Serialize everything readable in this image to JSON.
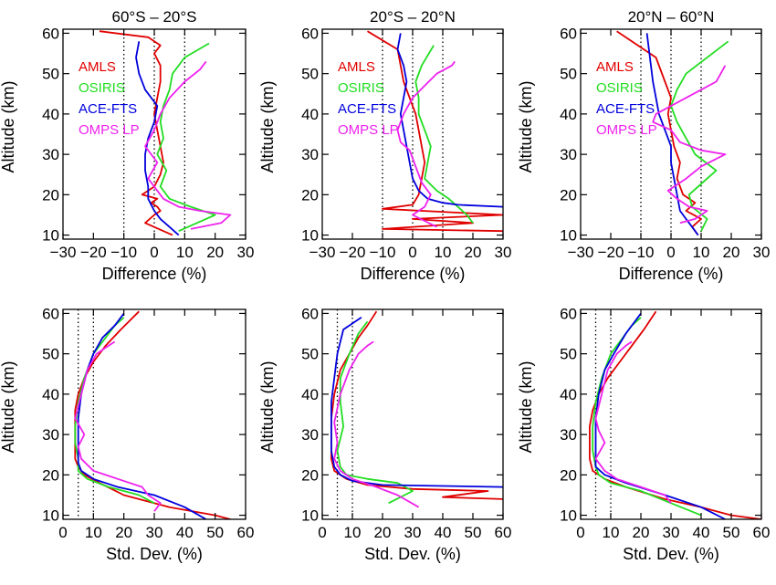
{
  "figure": {
    "diff_xlabel": "Difference (%)",
    "std_xlabel": "Std. Dev. (%)",
    "ylabel": "Altitude (km)"
  },
  "legend": [
    {
      "label": "AMLS",
      "color": "#e00000"
    },
    {
      "label": "OSIRIS",
      "color": "#22dd22"
    },
    {
      "label": "ACE-FTS",
      "color": "#0000dd"
    },
    {
      "label": "OMPS LP",
      "color": "#ee22ee"
    }
  ],
  "colors": {
    "AMLS": "#e00000",
    "OSIRIS": "#22dd22",
    "ACE-FTS": "#0000dd",
    "OMPS LP": "#ee22ee",
    "axis": "#000000"
  },
  "chart_data": [
    {
      "type": "line",
      "panel": "diff-60S-20S",
      "title": "60°S – 20°S",
      "xlabel": "Difference (%)",
      "ylabel": "Altitude (km)",
      "xlim": [
        -30,
        30
      ],
      "ylim": [
        9,
        61
      ],
      "xticks": [
        -30,
        -20,
        -10,
        0,
        10,
        20,
        30
      ],
      "yticks": [
        10,
        20,
        30,
        40,
        50,
        60
      ],
      "ref_lines": [
        -10,
        0,
        10
      ],
      "series": [
        {
          "name": "AMLS",
          "x": [
            6,
            3,
            -3,
            0,
            2,
            1,
            -1,
            1,
            -4,
            0,
            2,
            3,
            2,
            1,
            0,
            1,
            2,
            2,
            0,
            2,
            -2,
            -18
          ],
          "y": [
            10,
            11,
            13,
            15,
            16,
            17,
            18,
            19,
            20,
            22,
            25,
            28,
            32,
            36,
            40,
            44,
            48,
            52,
            55,
            57,
            59,
            60.5
          ]
        },
        {
          "name": "OSIRIS",
          "x": [
            8,
            14,
            20,
            12,
            5,
            2,
            4,
            1,
            3,
            2,
            3,
            5,
            6,
            10,
            18
          ],
          "y": [
            11,
            13,
            15,
            17,
            19,
            22,
            26,
            30,
            34,
            38,
            42,
            46,
            50,
            54,
            57.5
          ]
        },
        {
          "name": "ACE-FTS",
          "x": [
            8,
            5,
            2,
            0,
            -2,
            -2,
            -3,
            -3,
            -2,
            0,
            1,
            -3,
            -5,
            -6,
            -5
          ],
          "y": [
            10,
            12,
            14,
            16,
            19,
            22,
            26,
            30,
            34,
            38,
            42,
            46,
            50,
            54,
            58
          ]
        },
        {
          "name": "OMPS LP",
          "x": [
            12,
            22,
            25,
            15,
            8,
            3,
            1,
            -2,
            1,
            -3,
            0,
            2,
            5,
            10,
            15,
            17
          ],
          "y": [
            11.5,
            13,
            15,
            16,
            17,
            19,
            21,
            24,
            28,
            32,
            36,
            40,
            44,
            48,
            51,
            53
          ]
        }
      ]
    },
    {
      "type": "line",
      "panel": "diff-20S-20N",
      "title": "20°S – 20°N",
      "xlabel": "Difference (%)",
      "ylabel": "Altitude (km)",
      "xlim": [
        -30,
        30
      ],
      "ylim": [
        9,
        61
      ],
      "xticks": [
        -30,
        -20,
        -10,
        0,
        10,
        20,
        30
      ],
      "yticks": [
        10,
        20,
        30,
        40,
        50,
        60
      ],
      "ref_lines": [
        -10,
        0,
        10
      ],
      "series": [
        {
          "name": "AMLS",
          "x": [
            30,
            -10,
            20,
            0,
            30,
            -10,
            0,
            2,
            3,
            4,
            3,
            2,
            1,
            -3,
            -5,
            -15
          ],
          "y": [
            11,
            11.5,
            13,
            14,
            15,
            16.5,
            17.5,
            20,
            24,
            28,
            32,
            36,
            40,
            48,
            56,
            60.5
          ]
        },
        {
          "name": "OSIRIS",
          "x": [
            20,
            18,
            15,
            12,
            8,
            4,
            5,
            6,
            4,
            2,
            2,
            1,
            3,
            7
          ],
          "y": [
            13,
            15,
            17,
            19,
            21,
            24,
            28,
            32,
            36,
            40,
            44,
            48,
            52,
            57
          ]
        },
        {
          "name": "ACE-FTS",
          "x": [
            30,
            15,
            10,
            5,
            2,
            0,
            -1,
            -2,
            -3,
            -4,
            -3,
            -2,
            -3,
            -5,
            -4
          ],
          "y": [
            17,
            17.5,
            18,
            19,
            21,
            24,
            28,
            32,
            36,
            40,
            44,
            48,
            52,
            56,
            60
          ]
        },
        {
          "name": "OMPS LP",
          "x": [
            8,
            0,
            4,
            6,
            3,
            1,
            -1,
            -4,
            -5,
            -3,
            0,
            4,
            8,
            13,
            14
          ],
          "y": [
            12,
            15,
            17,
            20,
            23,
            27,
            31,
            33,
            36,
            40,
            44,
            47,
            50,
            52,
            53
          ]
        }
      ]
    },
    {
      "type": "line",
      "panel": "diff-20N-60N",
      "title": "20°N – 60°N",
      "xlabel": "Difference (%)",
      "ylabel": "Altitude (km)",
      "xlim": [
        -30,
        30
      ],
      "ylim": [
        9,
        61
      ],
      "xticks": [
        -30,
        -20,
        -10,
        0,
        10,
        20,
        30
      ],
      "yticks": [
        10,
        20,
        30,
        40,
        50,
        60
      ],
      "ref_lines": [
        -10,
        0,
        10
      ],
      "series": [
        {
          "name": "AMLS",
          "x": [
            9,
            7,
            10,
            5,
            8,
            4,
            2,
            3,
            1,
            0,
            -1,
            0,
            -2,
            -5,
            -18
          ],
          "y": [
            10,
            12,
            14,
            16,
            18,
            20,
            24,
            28,
            32,
            36,
            40,
            44,
            48,
            54,
            60.5
          ]
        },
        {
          "name": "OSIRIS",
          "x": [
            10,
            12,
            7,
            6,
            15,
            8,
            5,
            2,
            0,
            2,
            5,
            19
          ],
          "y": [
            11,
            14,
            17,
            20,
            26,
            30,
            34,
            38,
            42,
            46,
            50,
            58
          ]
        },
        {
          "name": "ACE-FTS",
          "x": [
            9,
            7,
            5,
            3,
            2,
            1,
            0,
            0,
            -2,
            -4,
            -5,
            -6,
            -8
          ],
          "y": [
            10,
            12,
            14,
            16,
            20,
            24,
            28,
            32,
            36,
            40,
            44,
            48,
            60
          ]
        },
        {
          "name": "OMPS LP",
          "x": [
            3,
            8,
            12,
            6,
            2,
            -1,
            5,
            10,
            18,
            10,
            3,
            0,
            -6,
            -5,
            5,
            15,
            18
          ],
          "y": [
            13,
            14,
            16,
            17,
            19,
            21,
            24,
            27,
            30,
            31,
            33,
            36,
            38,
            40,
            44,
            48,
            52
          ]
        }
      ]
    },
    {
      "type": "line",
      "panel": "std-60S-20S",
      "title": "",
      "xlabel": "Std. Dev. (%)",
      "ylabel": "Altitude (km)",
      "xlim": [
        0,
        60
      ],
      "ylim": [
        9,
        61
      ],
      "xticks": [
        0,
        10,
        20,
        30,
        40,
        50,
        60
      ],
      "yticks": [
        10,
        20,
        30,
        40,
        50,
        60
      ],
      "ref_lines": [
        5,
        10
      ],
      "series": [
        {
          "name": "AMLS",
          "x": [
            55,
            50,
            35,
            20,
            12,
            7,
            5,
            4,
            4,
            4,
            4,
            5,
            7,
            10,
            14,
            19,
            25
          ],
          "y": [
            9,
            10,
            12,
            15,
            18,
            20,
            22,
            24,
            28,
            32,
            36,
            40,
            44,
            48,
            52,
            56,
            60.5
          ]
        },
        {
          "name": "OSIRIS",
          "x": [
            30,
            25,
            15,
            8,
            5,
            5,
            4,
            4,
            5,
            7,
            10,
            14,
            17,
            20
          ],
          "y": [
            13,
            15,
            17,
            19,
            21,
            24,
            28,
            32,
            38,
            44,
            50,
            54,
            57,
            59
          ]
        },
        {
          "name": "ACE-FTS",
          "x": [
            47,
            40,
            30,
            18,
            10,
            6,
            5,
            5,
            5,
            6,
            8,
            10,
            13,
            17,
            20
          ],
          "y": [
            9,
            12,
            15,
            17,
            19,
            21,
            23,
            28,
            34,
            40,
            46,
            50,
            54,
            57,
            60
          ]
        },
        {
          "name": "OMPS LP",
          "x": [
            30,
            32,
            28,
            26,
            18,
            10,
            6,
            5,
            7,
            4,
            6,
            8,
            11,
            15,
            17
          ],
          "y": [
            11,
            13,
            15,
            17,
            19,
            21,
            24,
            27,
            30,
            34,
            40,
            46,
            50,
            52,
            53
          ]
        }
      ]
    },
    {
      "type": "line",
      "panel": "std-20S-20N",
      "title": "",
      "xlabel": "Std. Dev. (%)",
      "ylabel": "Altitude (km)",
      "xlim": [
        0,
        60
      ],
      "ylim": [
        9,
        61
      ],
      "xticks": [
        0,
        10,
        20,
        30,
        40,
        50,
        60
      ],
      "yticks": [
        10,
        20,
        30,
        40,
        50,
        60
      ],
      "ref_lines": [
        5,
        10
      ],
      "series": [
        {
          "name": "AMLS",
          "x": [
            60,
            40,
            55,
            30,
            15,
            8,
            4,
            3,
            3,
            3,
            4,
            6,
            9,
            12,
            15,
            18
          ],
          "y": [
            14,
            14.5,
            16,
            16.5,
            17.5,
            19,
            21,
            24,
            28,
            34,
            40,
            46,
            50,
            54,
            57,
            60.5
          ]
        },
        {
          "name": "OSIRIS",
          "x": [
            22,
            30,
            25,
            15,
            8,
            6,
            5,
            7,
            6,
            6,
            9,
            12,
            15
          ],
          "y": [
            13,
            16,
            18,
            19,
            20,
            22,
            26,
            32,
            38,
            44,
            50,
            55,
            58
          ]
        },
        {
          "name": "ACE-FTS",
          "x": [
            60,
            20,
            10,
            6,
            4,
            3,
            3,
            3,
            4,
            5,
            7,
            13
          ],
          "y": [
            17,
            17.5,
            18.5,
            20,
            22,
            26,
            32,
            38,
            44,
            50,
            56,
            59
          ]
        },
        {
          "name": "OMPS LP",
          "x": [
            32,
            25,
            18,
            10,
            6,
            4,
            5,
            4,
            6,
            9,
            12,
            15,
            17
          ],
          "y": [
            12,
            15,
            17,
            19,
            21,
            24,
            28,
            33,
            40,
            46,
            50,
            52,
            53
          ]
        }
      ]
    },
    {
      "type": "line",
      "panel": "std-20N-60N",
      "title": "",
      "xlabel": "Std. Dev. (%)",
      "ylabel": "Altitude (km)",
      "xlim": [
        0,
        60
      ],
      "ylim": [
        9,
        61
      ],
      "xticks": [
        0,
        10,
        20,
        30,
        40,
        50,
        60
      ],
      "yticks": [
        10,
        20,
        30,
        40,
        50,
        60
      ],
      "ref_lines": [
        5,
        10
      ],
      "series": [
        {
          "name": "AMLS",
          "x": [
            60,
            50,
            40,
            28,
            15,
            8,
            4,
            3,
            3,
            3,
            4,
            6,
            9,
            13,
            17,
            21,
            25
          ],
          "y": [
            9,
            10,
            12,
            14,
            17,
            19,
            21,
            24,
            28,
            32,
            36,
            40,
            44,
            48,
            52,
            56,
            60.5
          ]
        },
        {
          "name": "OSIRIS",
          "x": [
            40,
            30,
            20,
            10,
            6,
            5,
            4,
            4,
            5,
            7,
            10,
            14,
            17,
            20
          ],
          "y": [
            10,
            13,
            16,
            18,
            20,
            22,
            26,
            32,
            38,
            44,
            50,
            54,
            57,
            59
          ]
        },
        {
          "name": "ACE-FTS",
          "x": [
            48,
            40,
            28,
            15,
            8,
            5,
            5,
            5,
            6,
            8,
            11,
            15,
            20
          ],
          "y": [
            9,
            12,
            15,
            18,
            20,
            22,
            28,
            34,
            40,
            46,
            50,
            55,
            60
          ]
        },
        {
          "name": "OMPS LP",
          "x": [
            30,
            28,
            20,
            12,
            8,
            5,
            8,
            6,
            5,
            7,
            9,
            12,
            15,
            17
          ],
          "y": [
            13,
            15,
            17,
            19,
            21,
            24,
            28,
            31,
            34,
            40,
            46,
            50,
            52,
            53
          ]
        }
      ]
    }
  ]
}
